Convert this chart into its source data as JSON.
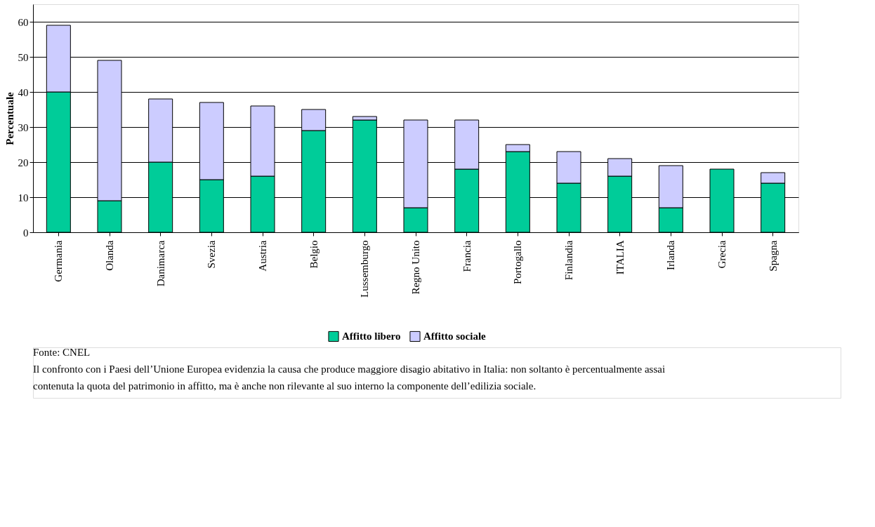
{
  "chart_data": {
    "type": "bar",
    "stacked": true,
    "ylabel": "Percentuale",
    "categories": [
      "Germania",
      "Olanda",
      "Danimarca",
      "Svezia",
      "Austria",
      "Belgio",
      "Lussemburgo",
      "Regno Unito",
      "Francia",
      "Portogallo",
      "Finlandia",
      "ITALIA",
      "Irlanda",
      "Grecia",
      "Spagna"
    ],
    "series": [
      {
        "name": "Affitto libero",
        "color": "#00cc99",
        "values": [
          40,
          9,
          20,
          15,
          16,
          29,
          32,
          7,
          18,
          23,
          14,
          16,
          7,
          18,
          14
        ]
      },
      {
        "name": "Affitto sociale",
        "color": "#ccccff",
        "values": [
          19,
          40,
          18,
          22,
          20,
          6,
          1,
          25,
          14,
          2,
          9,
          5,
          12,
          null,
          3
        ]
      }
    ],
    "ylim": [
      0,
      65
    ],
    "yticks": [
      0,
      10,
      20,
      30,
      40,
      50,
      60
    ],
    "grid": "y",
    "legend": "bottom",
    "annotations": [
      "Fonte: CNEL",
      "Il confronto con i Paesi dell’Unione Europea evidenzia la causa che produce maggiore disagio abitativo in Italia: non soltanto è percentualmente assai contenuta la quota del patrimonio in affitto, ma è anche non rilevante al suo interno la componente dell’edilizia sociale."
    ]
  }
}
